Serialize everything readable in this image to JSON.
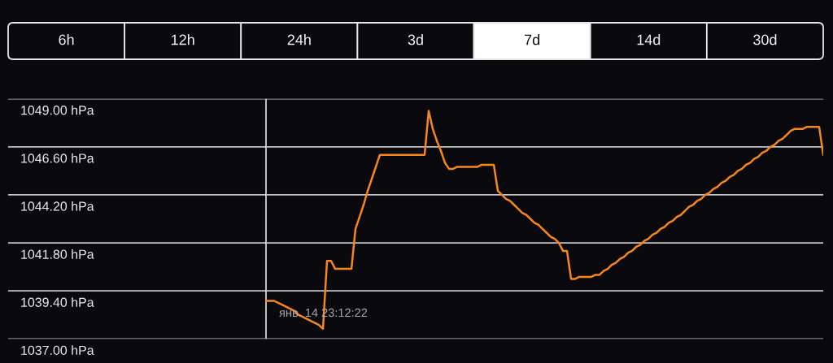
{
  "chart_data": [
    {
      "type": "other",
      "categories": [
        "6h",
        "12h",
        "24h",
        "3d",
        "7d",
        "14d",
        "30d"
      ],
      "colors": [
        "#0a0a0e",
        "#0a0a0e",
        "#0a0a0e",
        "#0a0a0e",
        "#ffffff",
        "#0a0a0e",
        "#0a0a0e"
      ]
    },
    {
      "type": "line",
      "categories": [
        null,
        null,
        null,
        null,
        null,
        null,
        null,
        null,
        null,
        null,
        null,
        null,
        null,
        null,
        null,
        null,
        null,
        null,
        null,
        null,
        null,
        null,
        null,
        null,
        null,
        null,
        null,
        null,
        null,
        null,
        null,
        null,
        null,
        null,
        null,
        null,
        null,
        null,
        null,
        null,
        null,
        null,
        null,
        null,
        null,
        null,
        null,
        null,
        null,
        null,
        null,
        null,
        null,
        null,
        null,
        null,
        null,
        null,
        null,
        null,
        null,
        null,
        null,
        null,
        null,
        null,
        null,
        null,
        null,
        null,
        null,
        null,
        null,
        null,
        null,
        null,
        null,
        null,
        null,
        null,
        null,
        null,
        null,
        null,
        null,
        null,
        null,
        null,
        null,
        null,
        null,
        null,
        null,
        null,
        null,
        null,
        null,
        null,
        null,
        null,
        null,
        null,
        null,
        null,
        null,
        null,
        null,
        null,
        null,
        null,
        null,
        null,
        null,
        null,
        null,
        null,
        null,
        null,
        null,
        null,
        null,
        null,
        null,
        null,
        null,
        null,
        null,
        null,
        null,
        null,
        null,
        null,
        null,
        null,
        null,
        null,
        null,
        null
      ],
      "series": [
        {
          "color": "#f7861f",
          "values": [
            1038.9,
            1038.9,
            1038.9,
            1038.8,
            1038.7,
            1038.6,
            1038.5,
            1038.4,
            1038.2,
            1038.1,
            1038.0,
            1037.9,
            1037.8,
            1037.7,
            1037.5,
            1040.9,
            1040.9,
            1040.5,
            1040.5,
            1040.5,
            1040.5,
            1040.5,
            1042.5,
            1043.1,
            1043.7,
            1044.4,
            1045.0,
            1045.6,
            1046.2,
            1046.2,
            1046.2,
            1046.2,
            1046.2,
            1046.2,
            1046.2,
            1046.2,
            1046.2,
            1046.2,
            1046.2,
            1046.2,
            1048.4,
            1047.5,
            1046.9,
            1046.4,
            1045.8,
            1045.5,
            1045.5,
            1045.6,
            1045.6,
            1045.6,
            1045.6,
            1045.6,
            1045.6,
            1045.7,
            1045.7,
            1045.7,
            1045.7,
            1044.4,
            1044.2,
            1044.0,
            1043.9,
            1043.7,
            1043.5,
            1043.3,
            1043.2,
            1043.0,
            1042.8,
            1042.7,
            1042.5,
            1042.3,
            1042.1,
            1042.0,
            1041.8,
            1041.4,
            1041.4,
            1040.0,
            1040.0,
            1040.1,
            1040.1,
            1040.1,
            1040.1,
            1040.2,
            1040.2,
            1040.4,
            1040.5,
            1040.7,
            1040.8,
            1041.0,
            1041.1,
            1041.3,
            1041.4,
            1041.6,
            1041.7,
            1041.9,
            1042.0,
            1042.2,
            1042.3,
            1042.5,
            1042.6,
            1042.8,
            1042.9,
            1043.1,
            1043.2,
            1043.4,
            1043.6,
            1043.7,
            1043.9,
            1044.0,
            1044.2,
            1044.3,
            1044.5,
            1044.6,
            1044.8,
            1044.9,
            1045.1,
            1045.2,
            1045.4,
            1045.5,
            1045.7,
            1045.8,
            1046.0,
            1046.1,
            1046.3,
            1046.4,
            1046.6,
            1046.7,
            1046.9,
            1047.0,
            1047.2,
            1047.4,
            1047.5,
            1047.5,
            1047.5,
            1047.6,
            1047.6,
            1047.6,
            1047.6,
            1046.2
          ]
        }
      ],
      "ylim": [
        1037,
        1049
      ],
      "yticks": [
        {
          "value": 1049,
          "label": "1049.00 hPa"
        },
        {
          "value": 1046.6,
          "label": "1046.60 hPa"
        },
        {
          "value": 1044.2,
          "label": "1044.20 hPa"
        },
        {
          "value": 1041.8,
          "label": "1041.80 hPa"
        },
        {
          "value": 1039.4,
          "label": "1039.40 hPa"
        },
        {
          "value": 1037,
          "label": "1037.00 hPa"
        }
      ],
      "grid": "y",
      "tick_labels": "y",
      "annotations": [
        "янв. 14 23:12:22"
      ]
    }
  ]
}
